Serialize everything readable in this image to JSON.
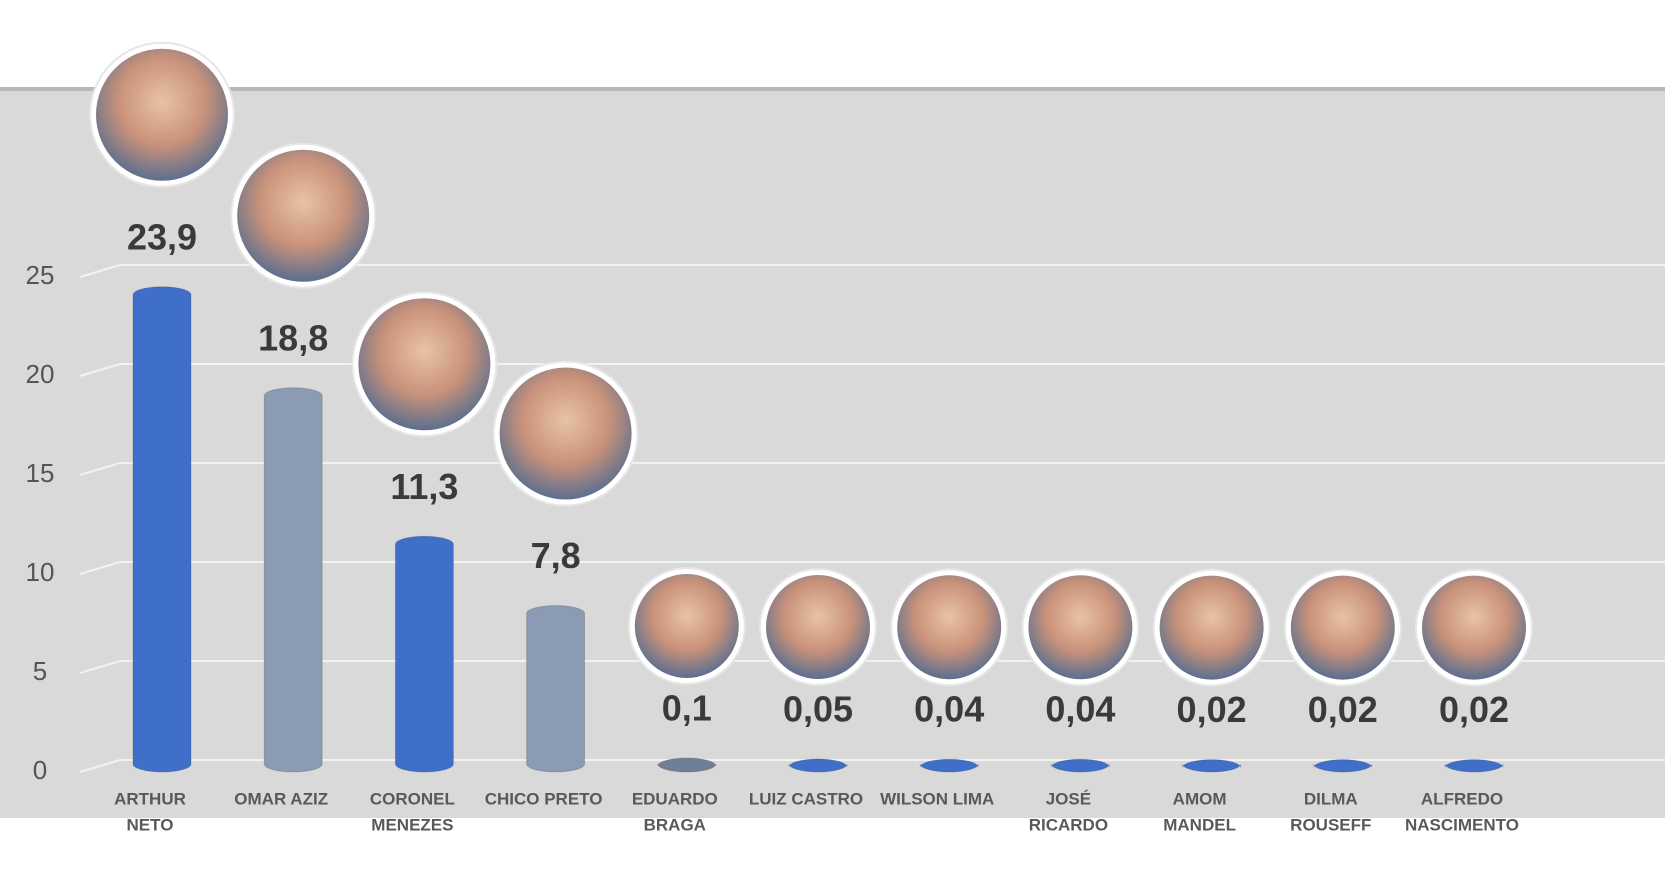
{
  "chart_data": {
    "type": "bar",
    "categories": [
      [
        "ARTHUR",
        "NETO"
      ],
      [
        "OMAR AZIZ"
      ],
      [
        "CORONEL",
        "MENEZES"
      ],
      [
        "CHICO PRETO"
      ],
      [
        "EDUARDO",
        "BRAGA"
      ],
      [
        "LUIZ CASTRO"
      ],
      [
        "WILSON LIMA"
      ],
      [
        "JOSÉ",
        "RICARDO"
      ],
      [
        "AMOM",
        "MANDEL"
      ],
      [
        "DILMA",
        "ROUSEFF"
      ],
      [
        "ALFREDO",
        "NASCIMENTO"
      ]
    ],
    "values": [
      23.9,
      18.8,
      11.3,
      7.8,
      0.1,
      0.05,
      0.04,
      0.04,
      0.02,
      0.02,
      0.02
    ],
    "value_labels": [
      "23,9",
      "18,8",
      "11,3",
      "7,8",
      "0,1",
      "0,05",
      "0,04",
      "0,04",
      "0,02",
      "0,02",
      "0,02"
    ],
    "colors": [
      "#3f6fc9",
      "#8b9bb4",
      "#3f6fc9",
      "#8b9bb4",
      "#6f7f96",
      "#3f6fc9",
      "#3f6fc9",
      "#3f6fc9",
      "#3f6fc9",
      "#3f6fc9",
      "#3f6fc9"
    ],
    "ylim": [
      0,
      25
    ],
    "yticks": [
      0,
      5,
      10,
      15,
      20,
      25
    ],
    "grid": true
  }
}
